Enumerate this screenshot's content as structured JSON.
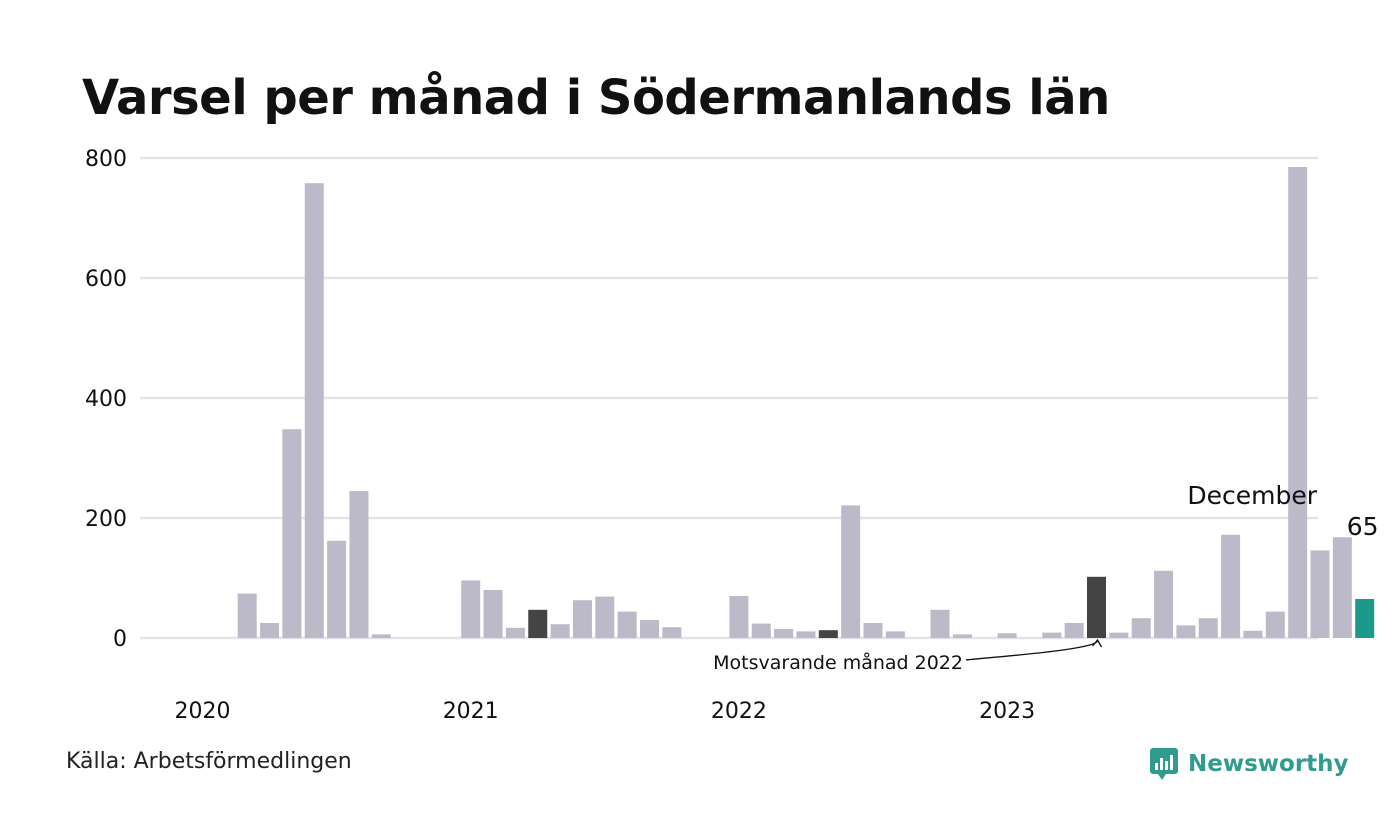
{
  "title": "Varsel per månad i Södermanlands län",
  "source": "Källa: Arbetsförmedlingen",
  "brand": "Newsworthy",
  "colors": {
    "bar": "#bcbac8",
    "comparison": "#444444",
    "highlight": "#1b998b",
    "grid": "#e3e3e8",
    "brand": "#2f9c8f"
  },
  "chart_data": {
    "type": "bar",
    "ylim": [
      0,
      800
    ],
    "yticks": [
      0,
      200,
      400,
      600,
      800
    ],
    "year_labels": [
      "2020",
      "2021",
      "2022",
      "2023"
    ],
    "months_per_year": 12,
    "values": [
      0,
      0,
      74,
      25,
      348,
      758,
      162,
      245,
      6,
      0,
      0,
      0,
      96,
      80,
      17,
      47,
      23,
      63,
      69,
      44,
      30,
      18,
      0,
      0,
      70,
      24,
      15,
      11,
      13,
      221,
      25,
      11,
      0,
      47,
      6,
      0,
      8,
      0,
      9,
      25,
      102,
      9,
      33,
      112,
      21,
      33,
      172,
      12,
      44,
      785,
      146,
      168,
      65
    ],
    "comparison_indices": [
      15,
      28,
      40
    ],
    "highlight_index": 52,
    "highlight_label": {
      "month": "December",
      "value": "65"
    },
    "annotation": {
      "text": "Motsvarande månad 2022",
      "index": 40
    }
  }
}
